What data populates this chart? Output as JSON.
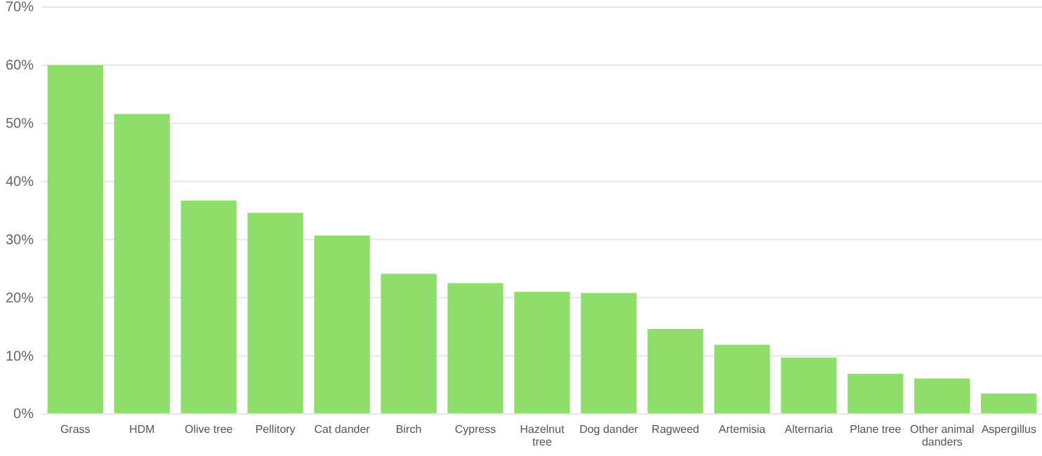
{
  "chart_data": {
    "type": "bar",
    "categories": [
      "Grass",
      "HDM",
      "Olive tree",
      "Pellitory",
      "Cat dander",
      "Birch",
      "Cypress",
      "Hazelnut tree",
      "Dog dander",
      "Ragweed",
      "Artemisia",
      "Alternaria",
      "Plane tree",
      "Other animal danders",
      "Aspergillus"
    ],
    "values": [
      60.0,
      51.6,
      36.7,
      34.6,
      30.7,
      24.1,
      22.5,
      21.0,
      20.8,
      14.6,
      11.9,
      9.7,
      6.9,
      6.1,
      3.5
    ],
    "color": "#8fdd6b",
    "ylim": [
      0,
      70
    ],
    "yticks": [
      {
        "value": 0,
        "label": "0%"
      },
      {
        "value": 10,
        "label": "10%"
      },
      {
        "value": 20,
        "label": "20%"
      },
      {
        "value": 30,
        "label": "30%"
      },
      {
        "value": 40,
        "label": "40%"
      },
      {
        "value": 50,
        "label": "50%"
      },
      {
        "value": 60,
        "label": "60%"
      },
      {
        "value": 70,
        "label": "70%"
      }
    ],
    "grid": "y"
  }
}
